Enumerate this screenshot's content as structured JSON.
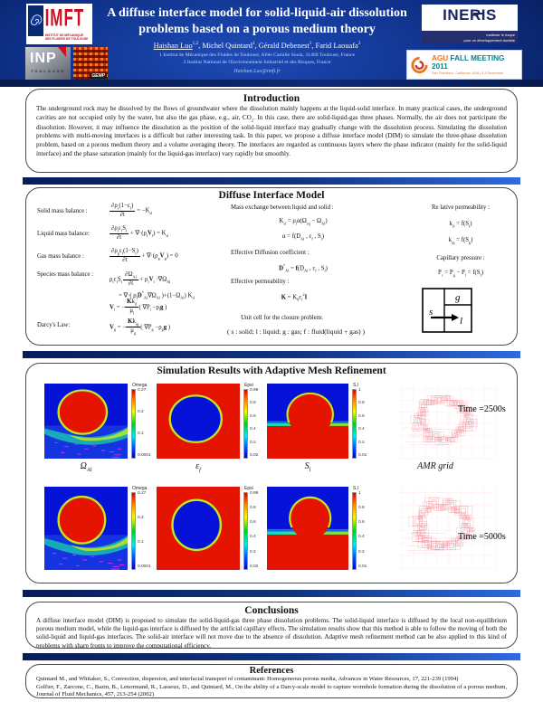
{
  "colors": {
    "hdr_mid": "#1d4cb8",
    "hdr_deep": "#0e2f86",
    "hdr_dark": "#071b52",
    "bar_dark": "#081d5a",
    "bar_bright": "#2e6ae0",
    "field_blue": "#0712d8",
    "field_red": "#e51400",
    "rim_green": "#c3e81e",
    "plume_green": "#17c87d",
    "magenta": "#f42bf4",
    "grid_pink": "#f2858f",
    "accent_navy": "#1a2a6e"
  },
  "header": {
    "title": "A diffuse interface model for solid-liquid-air dissolution problems based on a porous medium theory",
    "authors_html": "<u>Haishan Luo</u><sup>1,2</sup>, Michel Quintard<sup>1</sup>, Gérald Debenest<sup>1</sup>, Farid Laouafa<sup>2</sup>",
    "affiliation1": "1 Institut de Mécanique des Fluides de Toulouse, Allée Camille Soula, 31400 Toulouse, France",
    "affiliation2": "2 Institut National de l'Environnement Industriel et des Risques, France",
    "email": "Haishan.Luo@imft.fr",
    "logos": {
      "imft_acronym": "IMFT",
      "imft_subtext": "INSTITUT DE MÉCANIQUE DES FLUIDES DE TOULOUSE",
      "inp_acronym": "INP",
      "inp_city": "TOULOUSE",
      "gemp_label": "GEMP",
      "ineris_name": "INERIS",
      "ineris_tagline1": "maîtriser le risque",
      "ineris_tagline2": "pour un développement durable",
      "agu_name": "AGU",
      "agu_meeting": "FALL MEETING 2011",
      "agu_location": "San Francisco, California, USA | 5-9 December"
    }
  },
  "introduction": {
    "title": "Introduction",
    "body_html": "The underground rock may be dissolved by the flows of groundwater where the dissolution mainly happens at the liquid-solid interface. In many practical cases, the underground cavities are not occupied only by the water, but also the gas phase, e.g., air, CO<sub>2</sub>. In this case, there are solid-liquid-gas three phases. Normally, the air does not participate the dissolution. However, it may influence the dissolution as the position of the solid-liquid interface may gradually change with the dissolution process. Simulating the dissolution problems with multi-moving interfaces is a difficult but rather interesting task. In this paper, we propose a diffuse interface model (DIM) to simulate the three-phase dissolution problem, based on a porous medium theory and a volume averaging theory. The interfaces are regarded as continuous layers where the phase indicator (mainly for the solid-liquid interface) and the phase saturation (mainly for the liquid-gas interface) vary rapidly but smoothly."
  },
  "model": {
    "title": "Diffuse Interface Model",
    "labels": {
      "solid": "Solid mass balance :",
      "liquid": "Liquid mass balance:",
      "gas": "Gas mass balance :",
      "species": "Species mass balance :",
      "darcy": "Darcy's Law:",
      "mass_exchange": "Mass exchange between liquid and solid :",
      "eff_diffusion": "Effective Diffusion coefficient :",
      "eff_permeability": "Effective permeability :",
      "rel_permeability": "Re lative permeability :",
      "capillary": "Capillary pressure :",
      "unit_cell": "Unit cell for the closure problem:",
      "legend": "( s : solid;  l : liquid;  g : gas;  f : fluid(liquid + gas) )"
    },
    "equations": {
      "solid_html": "<span class='frac'><span class='num'>∂ρ<sub>s</sub>(1−ε<sub>f</sub>)</span><span class='den'>∂t</span></span>&nbsp;= −K<sub>sl</sub>",
      "liquid_html": "<span class='frac'><span class='num'>∂ρ<sub>l</sub>ε<sub>f</sub>S<sub>l</sub></span><span class='den'>∂t</span></span>&nbsp;+ ∇·(ρ<sub>l</sub><b>V</b><sub>l</sub>) = K<sub>sl</sub>",
      "gas_html": "<span class='frac'><span class='num'>∂ρ<sub>g</sub>ε<sub>f</sub>(1−S<sub>l</sub>)</span><span class='den'>∂t</span></span>&nbsp;+ ∇·(ρ<sub>g</sub><b>V</b><sub>g</sub>) = 0",
      "species1_html": "ρ<sub>l</sub>ε<sub>f</sub>S<sub>l</sub>&thinsp;<span class='frac'><span class='num'>∂Ω<sub>Al</sub></span><span class='den'>∂t</span></span>&nbsp;+ ρ<sub>l</sub><b>V</b><sub>l</sub> ·∇Ω<sub>Al</sub>",
      "species2_html": "= ∇·( ρ<sub>l</sub><b>D</b><sup>*</sup><sub>Al</sub>∇Ω<sub>Al</sub> )+(1−Ω<sub>Al</sub>) K<sub>sl</sub>",
      "darcy_l_html": "<b>V</b><sub>l</sub> = −<span class='frac'><span class='num'><b>K</b>k<sub>rl</sub></span><span class='den'>μ<sub>l</sub></span></span>( ∇P<sub>l</sub> −ρ<sub>l</sub><b>g</b> )",
      "darcy_g_html": "<b>V</b><sub>g</sub> = −<span class='frac'><span class='num'><b>K</b>k<sub>rg</sub></span><span class='den'>μ<sub>g</sub></span></span>( ∇P<sub>g</sub> −ρ<sub>g</sub><b>g</b> )",
      "ksl_html": "K<sub>sl</sub> = ρ<sub>l</sub>α(Ω<sub>eq</sub> − Ω<sub>Al</sub>)",
      "alpha_html": "α = f(D<sub>Al</sub> , ε<sub>f</sub> , S<sub>l</sub>)",
      "deff_html": "<b>D</b><sup>*</sup><sub>Al</sub> = <b>f</b>(D<sub>Al</sub> , ε<sub>f</sub> , S<sub>l</sub>)",
      "kperm_html": "<b>K</b> = K<sub>0</sub>ε<sub>f</sub><sup>2</sup><b>I</b>",
      "krl_html": "k<sub>rl</sub> = f(S<sub>l</sub>)",
      "krg_html": "k<sub>rg</sub> = f(S<sub>g</sub>)",
      "pc_html": "P<sub>c</sub> = P<sub>g</sub> − P<sub>l</sub> = f(S<sub>l</sub>)"
    },
    "unit_cell": {
      "s": "s",
      "g": "g",
      "l": "l"
    }
  },
  "simulation": {
    "title": "Simulation Results with Adaptive Mesh Refinement",
    "panel_labels": {
      "omega_html": "Ω<sub>Al</sub>",
      "eps_html": "ε<sub>f</sub>",
      "sl_html": "S<sub>l</sub>",
      "amr": "AMR grid"
    },
    "times": {
      "t1": "Time =2500s",
      "t2": "Time =5000s"
    },
    "colorbars": {
      "omega": {
        "title": "Omega",
        "ticks": [
          "0.27",
          "0.2",
          "0.1",
          "0.0001"
        ]
      },
      "epsi": {
        "title": "Epsi",
        "ticks": [
          "0.99",
          "0.8",
          "0.6",
          "0.4",
          "0.2",
          "0.02"
        ]
      },
      "sl": {
        "title": "S,l",
        "ticks": [
          "1",
          "0.8",
          "0.6",
          "0.4",
          "0.2",
          "0.01"
        ]
      }
    }
  },
  "conclusions": {
    "title": "Conclusions",
    "body": "A diffuse interface model (DIM) is proposed to simulate the solid-liquid-gas three phase dissolution problems. The solid-liquid interface is diffused by the local non-equilibrium porous medium model, while the liquid-gas interface is diffused by the artificial capillary effects. The simulation results show that this method is able to follow the moving of both the solid-liquid and liquid-gas interfaces. The solid-air interface will not move due to the absence of dissolution. Adaptive mesh refinement method can be also applied to this kind of problems with sharp fronts to improve the computational efficiency."
  },
  "references": {
    "title": "References",
    "items": [
      "Quintard M., and Whitaker, S., Convection, dispersion, and interfacial transport of contaminant: Homogeneous porous media, Advances in Water Resources, 17, 221-239 (1994)",
      "Golfier, F., Zarcone, C., Bazin, B., Lenormand, R., Lasseux, D., and Quintard, M., On the ability of a Darcy-scale model to capture wormhole formation during the dissolution of a porous medium, Journal of Fluid Mechanics, 457, 213-254 (2002)"
    ]
  }
}
